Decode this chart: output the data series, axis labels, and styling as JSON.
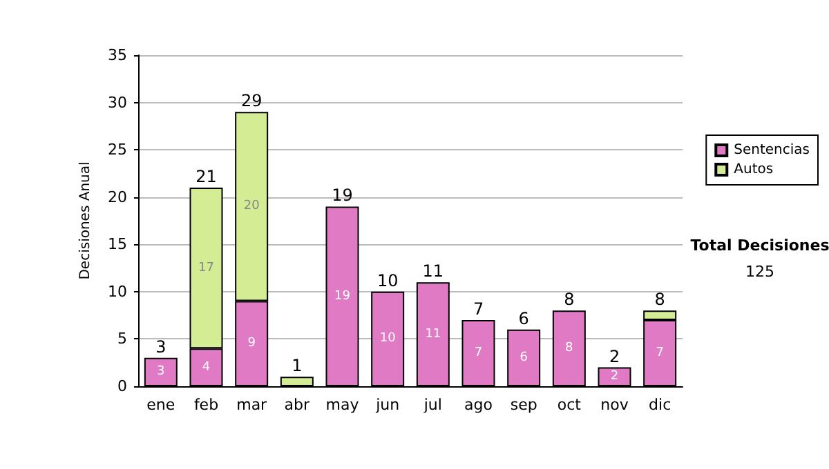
{
  "chart_data": {
    "type": "bar",
    "stacked": true,
    "ylabel": "Decisiones Anual",
    "categories": [
      "ene",
      "feb",
      "mar",
      "abr",
      "may",
      "jun",
      "jul",
      "ago",
      "sep",
      "oct",
      "nov",
      "dic"
    ],
    "series": [
      {
        "name": "Sentencias",
        "color": "#e07ac4",
        "values": [
          3,
          4,
          9,
          null,
          19,
          10,
          11,
          7,
          6,
          8,
          2,
          7
        ],
        "value_labels": [
          "3",
          "4",
          "9",
          null,
          "19",
          "10",
          "11",
          "7",
          "6",
          "8",
          "2",
          "7"
        ]
      },
      {
        "name": "Autos",
        "color": "#d4ec94",
        "values": [
          null,
          17,
          20,
          1,
          null,
          null,
          null,
          null,
          null,
          null,
          null,
          1
        ],
        "value_labels": [
          null,
          "17",
          "20",
          null,
          null,
          null,
          null,
          null,
          null,
          null,
          null,
          null
        ]
      }
    ],
    "totals": [
      "3",
      "21",
      "29",
      "1",
      "19",
      "10",
      "11",
      "7",
      "6",
      "8",
      "2",
      "8"
    ],
    "ylim": [
      0,
      35
    ],
    "yticks": [
      0,
      5,
      10,
      15,
      20,
      25,
      30,
      35
    ],
    "grid": "y",
    "legend": "right",
    "annotations": [
      "Total Decisiones",
      "125"
    ]
  }
}
